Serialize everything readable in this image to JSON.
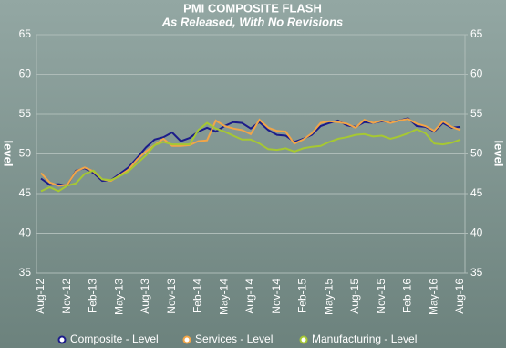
{
  "chart_data": {
    "type": "line",
    "title": "PMI COMPOSITE FLASH",
    "subtitle": "As Released, With No Revisions",
    "y_label": "level",
    "y2_label": "level",
    "categories": [
      "Aug-12",
      null,
      null,
      "Nov-12",
      null,
      null,
      "Feb-13",
      null,
      null,
      "May-13",
      null,
      null,
      "Aug-13",
      null,
      null,
      "Nov-13",
      null,
      null,
      "Feb-14",
      null,
      null,
      "May-14",
      null,
      null,
      "Aug-14",
      null,
      null,
      "Nov-14",
      null,
      null,
      "Feb-15",
      null,
      null,
      "May-15",
      null,
      null,
      "Aug-15",
      null,
      null,
      "Nov-15",
      null,
      null,
      "Feb-16",
      null,
      null,
      "May-16",
      null,
      null,
      "Aug-16"
    ],
    "series": [
      {
        "name": "Composite - Level",
        "color": "#1c1c8a",
        "values": [
          46.9,
          46.1,
          46.2,
          46.0,
          47.9,
          48.2,
          47.6,
          46.6,
          46.7,
          47.5,
          48.3,
          49.5,
          50.8,
          51.8,
          52.1,
          52.7,
          51.6,
          52.0,
          52.8,
          53.3,
          52.8,
          53.5,
          54.0,
          53.9,
          53.2,
          54.0,
          53.0,
          52.4,
          52.3,
          51.5,
          51.9,
          52.4,
          53.5,
          53.9,
          54.2,
          53.6,
          53.4,
          54.0,
          53.9,
          54.1,
          54.0,
          54.2,
          54.5,
          53.5,
          53.4,
          52.8,
          53.9,
          53.3,
          53.4
        ]
      },
      {
        "name": "Services - Level",
        "color": "#f2a548",
        "values": [
          47.6,
          46.4,
          46.0,
          46.1,
          47.8,
          48.3,
          47.8,
          46.8,
          46.6,
          47.3,
          48.0,
          49.3,
          50.3,
          51.1,
          51.9,
          51.0,
          51.0,
          51.1,
          51.6,
          51.7,
          54.2,
          53.5,
          53.2,
          53.0,
          52.5,
          54.3,
          53.3,
          52.9,
          52.8,
          51.3,
          51.8,
          52.6,
          53.9,
          54.1,
          54.0,
          53.8,
          53.3,
          54.3,
          53.9,
          54.2,
          53.9,
          54.2,
          54.4,
          53.8,
          53.5,
          52.9,
          54.1,
          53.4,
          53.0
        ]
      },
      {
        "name": "Manufacturing - Level",
        "color": "#a6c832",
        "values": [
          45.3,
          45.8,
          45.3,
          46.0,
          46.3,
          47.5,
          47.9,
          46.8,
          46.7,
          47.2,
          47.8,
          48.8,
          49.8,
          51.1,
          51.5,
          51.2,
          51.2,
          51.2,
          53.0,
          53.9,
          53.2,
          52.8,
          52.3,
          51.8,
          51.8,
          51.3,
          50.6,
          50.5,
          50.7,
          50.3,
          50.7,
          50.9,
          51.0,
          51.5,
          51.9,
          52.1,
          52.4,
          52.5,
          52.2,
          52.3,
          51.9,
          52.2,
          52.6,
          53.1,
          52.6,
          51.3,
          51.2,
          51.4,
          51.8
        ]
      }
    ],
    "ylim": [
      35,
      65
    ],
    "yticks": [
      35,
      40,
      45,
      50,
      55,
      60,
      65
    ],
    "y2lim": [
      35,
      65
    ],
    "y2ticks": [
      35,
      40,
      45,
      50,
      55,
      60,
      65
    ],
    "grid": true,
    "legend": "bottom"
  }
}
